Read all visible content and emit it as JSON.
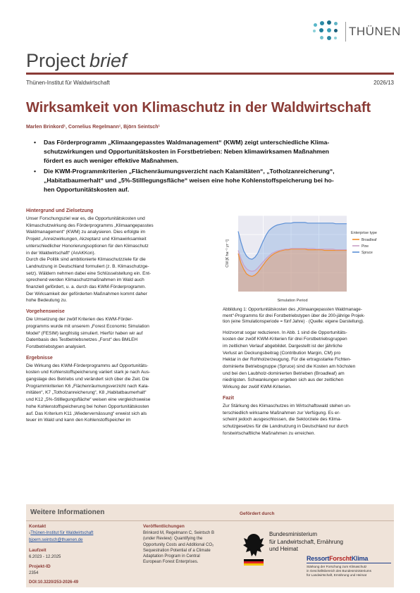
{
  "header": {
    "logo_text": "THÜNEN",
    "brief_word1": "Project",
    "brief_word2": "brief",
    "institute": "Thünen-Institut für Waldwirtschaft",
    "report_number": "2026/13"
  },
  "title": "Wirksamkeit von Klimaschutz in der Waldwirtschaft",
  "authors": "Marlen Brinkord¹, Cornelius Regelmann¹, Björn Seintsch¹",
  "bullets": [
    [
      "Das Förderprogramm „Klimaangepasstes Waldmanagement“ (KWM) zeigt unterschiedliche Klima-",
      "schutzwirkungen und Opportunitätskosten in Forstbetrieben: Neben klimawirksamen Maßnahmen",
      "fördert es auch weniger effektive Maßnahmen."
    ],
    [
      "Die KWM-Programmkriterien „Flächenräumungsverzicht nach Kalamitäten“, „Totholzanreicherung“,",
      "„Habitatbaumerhalt“ und „5%-Stilllegungsfläche“ weisen eine hohe Kohlenstoffspeicherung bei ho-",
      "hen Opportunitätskosten auf."
    ]
  ],
  "sections": {
    "hintergrund": {
      "heading": "Hintergrund und Zielsetzung",
      "lines": [
        "Unser Forschungsziel war es, die Opportunitätskosten und",
        "Klimaschutzwirkung des Förderprogramms „Klimaangepasstes",
        "Waldmanagement“ (KWM) zu analysieren. Dies erfolgte im",
        "Projekt „Anreizwirkungen, Akzeptanz und Klimawirksamkeit",
        "unterschiedlicher Honorierungsoptionen für den Klimaschutz",
        "in der Waldwirtschaft“ (AnAKKon).",
        "Durch die Politik sind ambitionierte Klimaschutzziele für die",
        "Landnutzung in Deutschland formuliert (z. B. Klimaschutzge-",
        "setz). Wäldern nehmen dabei eine Schlüsselstellung ein. Ent-",
        "sprechend werden Klimaschutzmaßnahmen im Wald auch",
        "finanziell gefördert, u. a. durch das KWM-Förderprogramm.",
        "Der Wirksamkeit der geförderten Maßnahmen kommt daher",
        "hohe Bedeutung zu."
      ]
    },
    "vorgehen": {
      "heading": "Vorgehensweise",
      "lines": [
        "Die Umsetzung der zwölf Kriterien des KWM-Förder-",
        "programms wurde mit unserem „Forest Economic Simulation",
        "Model“ (FESIM) langfristig simuliert. Hierfür haben wir auf",
        "Datenbasis des Testbetriebsnetzes „Forst“ des BMLEH",
        "Forstbetriebstypen analysiert."
      ]
    },
    "ergebnisse": {
      "heading": "Ergebnisse",
      "lines": [
        "Die Wirkung des KWM-Förderprogramms auf Opportunitäts-",
        "kosten und Kohlenstoffspeicherung variiert stark je nach Aus-",
        "gangslage des Betriebs und verändert sich über die Zeit. Die",
        "Programmkriterien K6 „Flächenräumungsverzicht nach Kala-",
        "mitäten“, K7 „Totholzanreicherung“, K8 „Habitatbaumerhalt“",
        "und K12 „5%-Stilllegungsfläche“ weisen eine vergleichsweise",
        "hohe Kohlenstoffspeicherung bei hohen Opportunitätskosten",
        "auf. Das Kriterium K11 „Wiedervernässung“ erweist sich als",
        "teuer im Wald und kann den Kohlenstoffspeicher im"
      ]
    },
    "ergebnisse_cont": {
      "lines": [
        "Holzvorrat sogar reduzieren. In Abb. 1 sind die Opportunitäts-",
        "kosten der zwölf KWM-Kriterien für drei Forstbetriebsgruppen",
        "im zeitlichen Verlauf abgebildet. Dargestellt ist der jährliche",
        "Verlust an Deckungsbeitrag (Contribution Margin, CM) pro",
        "Hektar in der Rohholzerzeugung. Für die ertragsstarke Fichten-",
        "dominierte Betriebsgruppe (Spruce) sind die Kosten am höchsten",
        "und bei den Laubholz-dominierten Betrieben (Broadleaf) am",
        "niedrigsten. Schwankungen ergeben sich aus der zeitlichen",
        "Wirkung der zwölf KWM-Kriterien."
      ]
    },
    "fazit": {
      "heading": "Fazit",
      "lines": [
        "Zur Stärkung des Klimaschutzes im Wirtschaftswald stehen un-",
        "terschiedlich wirksame Maßnahmen zur Verfügung. Es er-",
        "scheint jedoch ausgeschlossen, die Sektorziele des Klima-",
        "schutzgesetzes für die Landnutzung in Deutschland nur durch",
        "forstwirtschaftliche Maßnahmen zu erreichen."
      ]
    }
  },
  "figure": {
    "caption_lines": [
      "Abbildung 1: Opportunitätskosten des „Klimaangepassten Waldmanage-",
      "ment“-Programms für drei Forstbetriebstypen über die 200-jährige Projek-",
      "tion (eine Simulationsperiode = fünf Jahre) · (Quelle: eigene Darstellung)."
    ]
  },
  "chart_data": {
    "type": "area",
    "xlabel": "Simulation Period",
    "ylabel": "CM [€ ha⁻¹ yr⁻¹]",
    "legend_title": "Enterprise type",
    "legend_position": "right",
    "x": [
      1,
      2,
      3,
      4,
      5,
      6,
      7,
      8,
      9,
      10,
      11,
      12,
      13,
      14,
      15,
      16,
      17,
      18,
      19,
      20,
      21,
      22,
      23,
      24,
      25,
      26,
      27,
      28,
      29,
      30,
      31,
      32,
      33,
      34,
      35,
      36,
      37,
      38,
      39,
      40
    ],
    "series": [
      {
        "name": "Broadleaf",
        "color": "#f28e2b",
        "values": [
          60,
          45,
          35,
          28,
          25,
          24,
          26,
          30,
          36,
          42,
          48,
          53,
          57,
          60,
          62,
          64,
          65,
          66,
          66,
          67,
          67,
          67,
          67,
          67,
          67,
          66,
          66,
          66,
          66,
          66,
          66,
          65,
          65,
          65,
          65,
          65,
          65,
          65,
          65,
          65
        ]
      },
      {
        "name": "Pine",
        "color": "#c9a0c6",
        "values": [
          65,
          52,
          42,
          36,
          33,
          32,
          33,
          37,
          42,
          47,
          52,
          56,
          60,
          62,
          64,
          65,
          66,
          67,
          67,
          68,
          68,
          68,
          68,
          68,
          68,
          68,
          68,
          68,
          67,
          67,
          67,
          67,
          67,
          67,
          67,
          66,
          66,
          66,
          66,
          66
        ]
      },
      {
        "name": "Spruce",
        "color": "#5b8fd6",
        "values": [
          95,
          78,
          64,
          56,
          52,
          51,
          54,
          60,
          70,
          80,
          89,
          96,
          100,
          103,
          105,
          106,
          107,
          108,
          108,
          108,
          109,
          109,
          109,
          109,
          109,
          108,
          108,
          108,
          108,
          108,
          108,
          108,
          108,
          108,
          108,
          107,
          107,
          107,
          107,
          107
        ]
      }
    ]
  },
  "info": {
    "title": "Weitere Informationen",
    "kontakt_label": "Kontakt",
    "kontakt_link": "Thünen-Institut für Waldwirtschaft",
    "kontakt_email": "bjoern.seintsch@thuenen.de",
    "laufzeit_label": "Laufzeit",
    "laufzeit_value": "6.2023 - 12.2025",
    "projekt_label": "Projekt-ID",
    "projekt_value": "2354",
    "doi": "DOI:10.3220/253-2026-49",
    "pub_label": "Veröffentlichungen",
    "pub_lines": [
      "Brinkord M, Regelmann C, Seintsch B",
      "(under Review): Quantifying the",
      "Opportunity Costs and Additional CO₂",
      "Sequestration Potential of a Climate",
      "Adaptation Program in Central",
      "European Forest Enterprises."
    ],
    "funded_label": "Gefördert durch",
    "bmel_lines": [
      "Bundesministerium",
      "für Landwirtschaft, Ernährung",
      "und Heimat"
    ],
    "rfk_part1": "Ressort",
    "rfk_part2": "Forscht",
    "rfk_part3": "Klima",
    "rfk_sub": [
      "Stärkung der Forschung zum Klimaschutz",
      "in Geschäftsbereich des Bundesministeriums",
      "für Landwirtschaft, Ernährung und Heimat"
    ]
  }
}
